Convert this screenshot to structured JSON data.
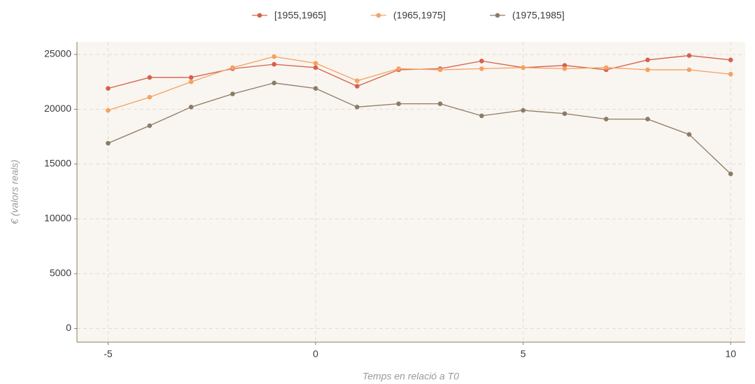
{
  "chart_data": {
    "type": "line",
    "x_label": "Temps en relació a T0",
    "y_label": "€ (valors reals)",
    "x": [
      -5,
      -4,
      -3,
      -2,
      -1,
      0,
      1,
      2,
      3,
      4,
      5,
      6,
      7,
      8,
      9,
      10
    ],
    "series": [
      {
        "name": "[1955,1965]",
        "color": "#d6604d",
        "values": [
          21900,
          22900,
          22900,
          23700,
          24100,
          23800,
          22100,
          23600,
          23700,
          24400,
          23800,
          24000,
          23600,
          24500,
          24900,
          24500
        ]
      },
      {
        "name": "(1965,1975]",
        "color": "#f4a261",
        "values": [
          19900,
          21100,
          22500,
          23800,
          24800,
          24200,
          22600,
          23700,
          23600,
          23700,
          23800,
          23700,
          23800,
          23600,
          23600,
          23200
        ]
      },
      {
        "name": "(1975,1985]",
        "color": "#8c7b65",
        "values": [
          16900,
          18500,
          20200,
          21400,
          22400,
          21900,
          20200,
          20500,
          20500,
          19400,
          19900,
          19600,
          19100,
          19100,
          17700,
          14100
        ]
      }
    ],
    "xlim": [
      -5.75,
      10.35
    ],
    "xticks": [
      -5,
      0,
      5,
      10
    ],
    "ylim": [
      -1245,
      26145
    ],
    "yticks": [
      0,
      5000,
      10000,
      15000,
      20000,
      25000
    ],
    "grid": true,
    "legend": "top"
  }
}
